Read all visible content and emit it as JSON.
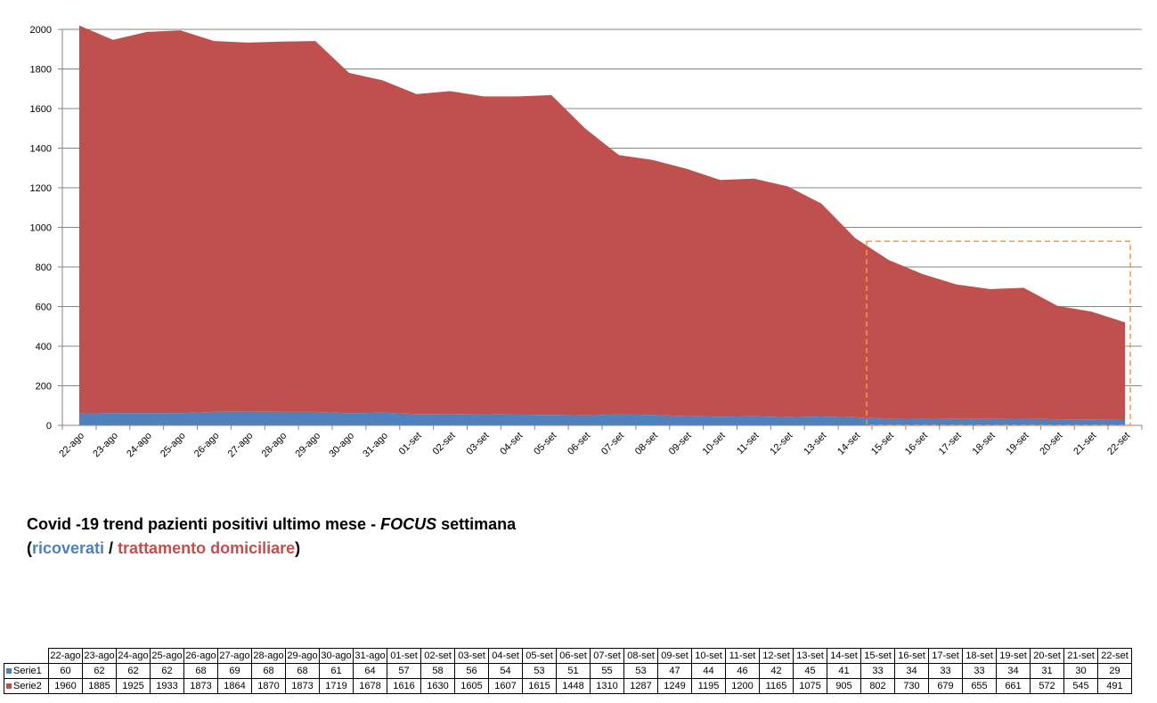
{
  "chart_data": {
    "type": "area",
    "stacked": true,
    "categories": [
      "22-ago",
      "23-ago",
      "24-ago",
      "25-ago",
      "26-ago",
      "27-ago",
      "28-ago",
      "29-ago",
      "30-ago",
      "31-ago",
      "01-set",
      "02-set",
      "03-set",
      "04-set",
      "05-set",
      "06-set",
      "07-set",
      "08-set",
      "09-set",
      "10-set",
      "11-set",
      "12-set",
      "13-set",
      "14-set",
      "15-set",
      "16-set",
      "17-set",
      "18-set",
      "19-set",
      "20-set",
      "21-set",
      "22-set"
    ],
    "series": [
      {
        "name": "Serie1",
        "color": "#4f81bd",
        "values": [
          60,
          62,
          62,
          62,
          68,
          69,
          68,
          68,
          61,
          64,
          57,
          58,
          56,
          54,
          53,
          51,
          55,
          53,
          47,
          44,
          46,
          42,
          45,
          41,
          33,
          34,
          33,
          33,
          34,
          31,
          30,
          29
        ]
      },
      {
        "name": "Serie2",
        "color": "#c0504d",
        "values": [
          1960,
          1885,
          1925,
          1933,
          1873,
          1864,
          1870,
          1873,
          1719,
          1678,
          1616,
          1630,
          1605,
          1607,
          1615,
          1448,
          1310,
          1287,
          1249,
          1195,
          1200,
          1165,
          1075,
          905,
          802,
          730,
          679,
          655,
          661,
          572,
          545,
          491
        ]
      }
    ],
    "ylim": [
      0,
      2000
    ],
    "yticks": [
      0,
      200,
      400,
      600,
      800,
      1000,
      1200,
      1400,
      1600,
      1800,
      2000
    ],
    "grid": true,
    "highlight": {
      "from": "15-set",
      "to": "22-set",
      "y_top": 930,
      "color": "#f79646"
    }
  },
  "caption": {
    "line1_a": "Covid -19 trend pazienti positivi ultimo mese - ",
    "line1_focus": "FOCUS",
    "line1_b": " settimana",
    "paren_open": "(",
    "blue_text": "ricoverati",
    "sep": " / ",
    "red_text": "trattamento domiciliare",
    "paren_close": ")"
  }
}
